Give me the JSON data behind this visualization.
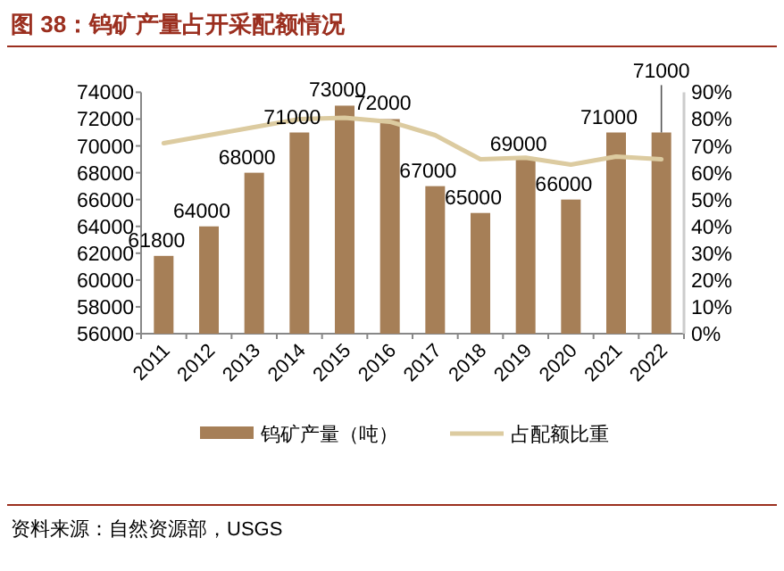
{
  "chart_data": {
    "type": "bar",
    "title": "图 38：钨矿产量占开采配额情况",
    "categories": [
      "2011",
      "2012",
      "2013",
      "2014",
      "2015",
      "2016",
      "2017",
      "2018",
      "2019",
      "2020",
      "2021",
      "2022"
    ],
    "series": [
      {
        "name": "钨矿产量（吨）",
        "color": "#a67f57",
        "values": [
          61800,
          64000,
          68000,
          71000,
          73000,
          72000,
          67000,
          65000,
          69000,
          66000,
          71000,
          71000
        ],
        "value_labels": [
          "61800",
          "64000",
          "68000",
          "71000",
          "73000",
          "72000",
          "67000",
          "65000",
          "69000",
          "66000",
          "71000",
          "71000"
        ]
      },
      {
        "name": "占配额比重",
        "type": "line",
        "axis": "y2",
        "color": "#dccba0",
        "values": [
          71,
          74,
          77,
          80,
          80.5,
          79,
          74,
          65,
          65.6,
          63,
          66,
          65
        ]
      }
    ],
    "ylim": [
      56000,
      74000
    ],
    "yticks": [
      56000,
      58000,
      60000,
      62000,
      64000,
      66000,
      68000,
      70000,
      72000,
      74000
    ],
    "y2lim": [
      0,
      90
    ],
    "y2ticks": [
      {
        "value": 0,
        "label": "0%"
      },
      {
        "value": 10,
        "label": "10%"
      },
      {
        "value": 20,
        "label": "20%"
      },
      {
        "value": 30,
        "label": "30%"
      },
      {
        "value": 40,
        "label": "40%"
      },
      {
        "value": 50,
        "label": "50%"
      },
      {
        "value": 60,
        "label": "60%"
      },
      {
        "value": 70,
        "label": "70%"
      },
      {
        "value": 80,
        "label": "80%"
      },
      {
        "value": 90,
        "label": "90%"
      }
    ],
    "legend": "bottom",
    "grid": false,
    "annotations": [
      "资料来源：自然资源部，USGS"
    ]
  }
}
